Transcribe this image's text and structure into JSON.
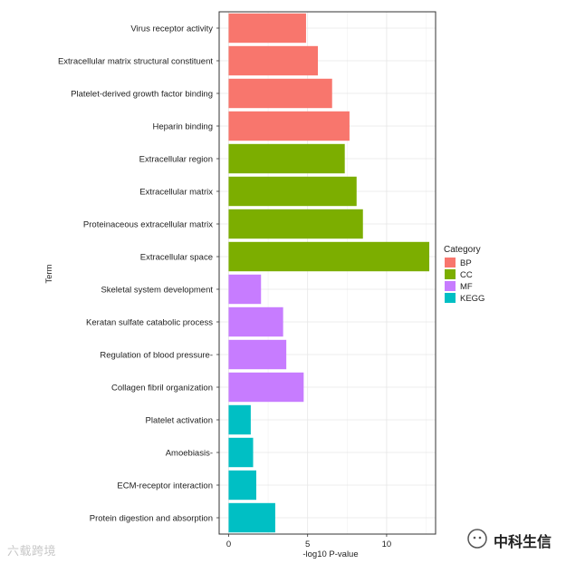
{
  "chart_data": {
    "type": "bar",
    "orientation": "horizontal",
    "title": "",
    "xlabel": "-log10 P-value",
    "ylabel": "Term",
    "xlim": [
      -0.6,
      13.1
    ],
    "xticks": [
      0,
      5,
      10
    ],
    "grid": true,
    "legend": {
      "title": "Category",
      "placement": "right",
      "entries": [
        {
          "name": "BP",
          "color": "#F8766D"
        },
        {
          "name": "CC",
          "color": "#7CAE00"
        },
        {
          "name": "MF",
          "color": "#C77CFF"
        },
        {
          "name": "KEGG",
          "color": "#00BFC4"
        }
      ]
    },
    "categories": [
      "Virus receptor activity",
      "Extracellular matrix structural constituent",
      "Platelet-derived growth factor binding",
      "Heparin binding",
      "Extracellular region",
      "Extracellular matrix",
      "Proteinaceous extracellular matrix",
      "Extracellular space",
      "Skeletal system development",
      "Keratan sulfate catabolic process",
      "Regulation of blood pressure-",
      "Collagen fibril organization",
      "Platelet activation",
      "Amoebiasis-",
      "ECM-receptor interaction",
      "Protein digestion and absorption"
    ],
    "values": [
      4.9,
      5.65,
      6.55,
      7.65,
      7.35,
      8.1,
      8.5,
      12.7,
      2.05,
      3.45,
      3.65,
      4.75,
      1.4,
      1.55,
      1.75,
      2.95
    ],
    "groups": [
      "BP",
      "BP",
      "BP",
      "BP",
      "CC",
      "CC",
      "CC",
      "CC",
      "MF",
      "MF",
      "MF",
      "MF",
      "KEGG",
      "KEGG",
      "KEGG",
      "KEGG"
    ]
  },
  "watermarks": {
    "left_text": "六载跨境",
    "right_text": "中科生信"
  }
}
